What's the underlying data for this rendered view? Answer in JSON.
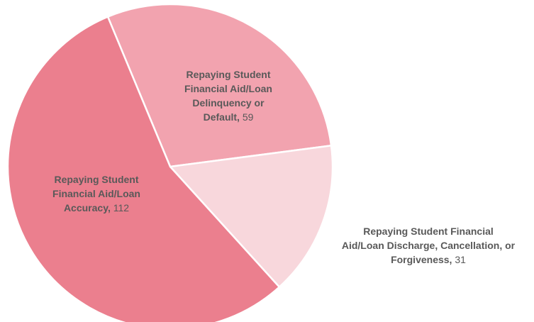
{
  "chart_data": {
    "type": "pie",
    "title": "",
    "series": [
      {
        "values": [
          59,
          31,
          112
        ],
        "categories": [
          "Repaying Student Financial Aid/Loan Delinquency or Default",
          "Repaying Student Financial Aid/Loan Discharge, Cancellation, or Forgiveness",
          "Repaying Student Financial Aid/Loan Accuracy"
        ]
      }
    ],
    "slices": [
      {
        "category": "Repaying Student Financial Aid/Loan Delinquency or Default",
        "value": 59,
        "value_text": "59",
        "label_lines": [
          "Repaying Student",
          "Financial Aid/Loan",
          "Delinquency or",
          "Default,"
        ],
        "color": "#f2a3af"
      },
      {
        "category": "Repaying Student Financial Aid/Loan Discharge, Cancellation, or Forgiveness",
        "value": 31,
        "value_text": "31",
        "label_lines": [
          "Repaying Student Financial",
          "Aid/Loan Discharge, Cancellation, or",
          "Forgiveness,"
        ],
        "color": "#f8d7dc"
      },
      {
        "category": "Repaying Student Financial Aid/Loan Accuracy",
        "value": 112,
        "value_text": " 112",
        "label_lines": [
          "Repaying Student",
          "Financial Aid/Loan",
          "Accuracy,"
        ],
        "color": "#eb7f8e"
      }
    ],
    "legend": "none",
    "data_labels": "category name and value"
  }
}
